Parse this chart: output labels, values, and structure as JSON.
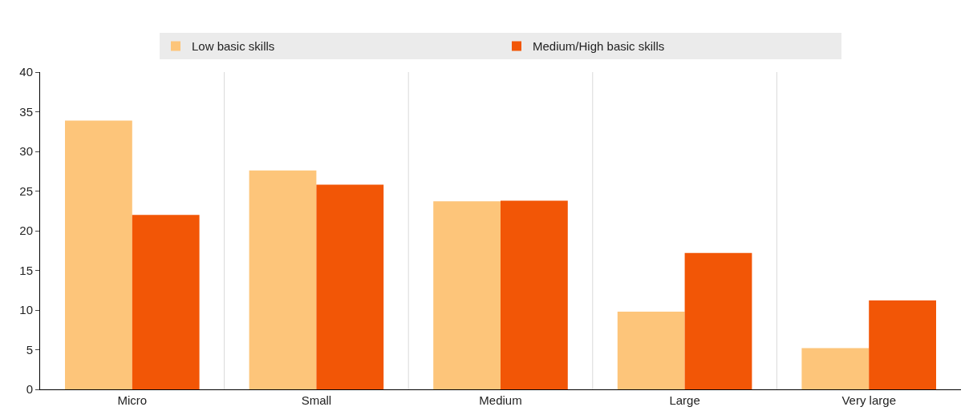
{
  "chart_data": {
    "type": "bar",
    "categories": [
      "Micro",
      "Small",
      "Medium",
      "Large",
      "Very large"
    ],
    "series": [
      {
        "name": "Low basic skills",
        "color": "#fdc57a",
        "values": [
          33.9,
          27.6,
          23.7,
          9.8,
          5.2
        ]
      },
      {
        "name": "Medium/High basic skills",
        "color": "#f25606",
        "values": [
          22.0,
          25.8,
          23.8,
          17.2,
          11.2
        ]
      }
    ],
    "ylim": [
      0,
      40
    ],
    "yticks": [
      0,
      5,
      10,
      15,
      20,
      25,
      30,
      35,
      40
    ],
    "grid": "x",
    "legend": "top"
  }
}
